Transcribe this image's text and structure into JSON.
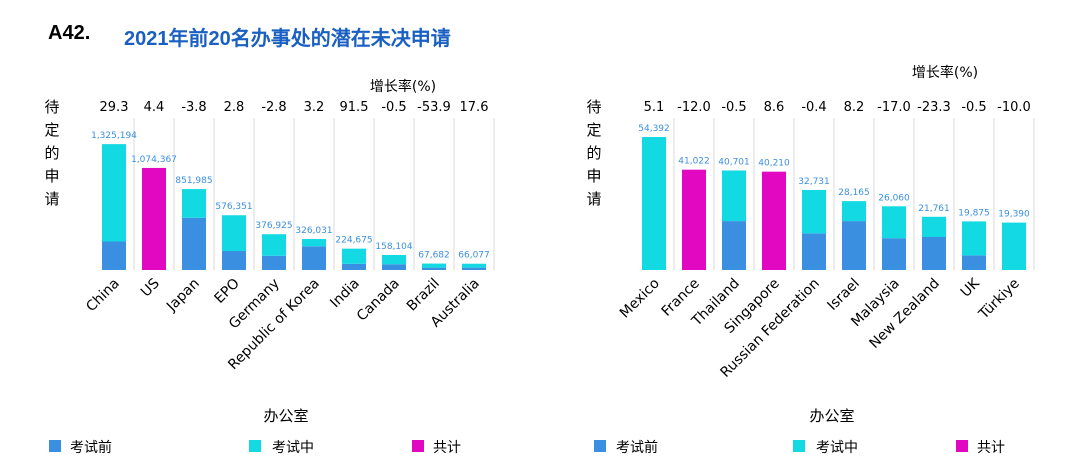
{
  "figure": {
    "id": "A42.",
    "title": "2021年前20名办事处的潜在未决申请"
  },
  "colors": {
    "before_exam": "#3a8fe0",
    "in_exam": "#13d9e3",
    "total": "#e207c0",
    "gridline": "#d9d9d9"
  },
  "chart_data": [
    {
      "type": "bar",
      "stacked": true,
      "title": "",
      "xlabel": "办公室",
      "ylabel": "待定的申请",
      "growth_header": "增长率(%)",
      "ylim": [
        0,
        1400000
      ],
      "legend": [
        {
          "key": "before_exam",
          "label": "考试前"
        },
        {
          "key": "in_exam",
          "label": "考试中"
        },
        {
          "key": "total",
          "label": "共计"
        }
      ],
      "categories": [
        "China",
        "US",
        "Japan",
        "EPO",
        "Germany",
        "Republic of Korea",
        "India",
        "Canada",
        "Brazil",
        "Australia"
      ],
      "growth": [
        "29.3",
        "4.4",
        "-3.8",
        "2.8",
        "-2.8",
        "3.2",
        "91.5",
        "-0.5",
        "-53.9",
        "17.6"
      ],
      "totals": [
        1325194,
        1074367,
        851985,
        576351,
        376925,
        326031,
        224675,
        158104,
        67682,
        66077
      ],
      "total_labels": [
        "1,325,194",
        "1,074,367",
        "851,985",
        "576,351",
        "376,925",
        "326,031",
        "224,675",
        "158,104",
        "67,682",
        "66,077"
      ],
      "total_only": [
        false,
        true,
        false,
        false,
        false,
        false,
        false,
        false,
        false,
        false
      ],
      "series": [
        {
          "key": "before_exam",
          "name": "考试前",
          "values": [
            300000,
            0,
            550000,
            200000,
            150000,
            250000,
            65000,
            60000,
            25000,
            25000
          ]
        },
        {
          "key": "in_exam",
          "name": "考试中",
          "values": [
            1025194,
            0,
            301985,
            376351,
            226925,
            76031,
            159675,
            98104,
            42682,
            41077
          ]
        },
        {
          "key": "total",
          "name": "共计",
          "values": [
            0,
            1074367,
            0,
            0,
            0,
            0,
            0,
            0,
            0,
            0
          ]
        }
      ]
    },
    {
      "type": "bar",
      "stacked": true,
      "title": "",
      "xlabel": "办公室",
      "ylabel": "待定的申请",
      "growth_header": "增长率(%)",
      "ylim": [
        0,
        54392
      ],
      "legend": [
        {
          "key": "before_exam",
          "label": "考试前"
        },
        {
          "key": "in_exam",
          "label": "考试中"
        },
        {
          "key": "total",
          "label": "共计"
        }
      ],
      "categories": [
        "Mexico",
        "France",
        "Thailand",
        "Singapore",
        "Russian Federation",
        "Israel",
        "Malaysia",
        "New Zealand",
        "UK",
        "Türkiye"
      ],
      "growth": [
        "5.1",
        "-12.0",
        "-0.5",
        "8.6",
        "-0.4",
        "8.2",
        "-17.0",
        "-23.3",
        "-0.5",
        "-10.0"
      ],
      "totals": [
        54392,
        41022,
        40701,
        40210,
        32731,
        28165,
        26060,
        21761,
        19875,
        19390
      ],
      "total_labels": [
        "54,392",
        "41,022",
        "40,701",
        "40,210",
        "32,731",
        "28,165",
        "26,060",
        "21,761",
        "19,875",
        "19,390"
      ],
      "total_only": [
        false,
        true,
        false,
        true,
        false,
        false,
        false,
        false,
        false,
        false
      ],
      "series": [
        {
          "key": "before_exam",
          "name": "考试前",
          "values": [
            0,
            0,
            20000,
            0,
            15000,
            20000,
            13000,
            13500,
            6000,
            0
          ]
        },
        {
          "key": "in_exam",
          "name": "考试中",
          "values": [
            54392,
            0,
            20701,
            0,
            17731,
            8165,
            13060,
            8261,
            13875,
            19390
          ]
        },
        {
          "key": "total",
          "name": "共计",
          "values": [
            0,
            41022,
            0,
            40210,
            0,
            0,
            0,
            0,
            0,
            0
          ]
        }
      ]
    }
  ]
}
